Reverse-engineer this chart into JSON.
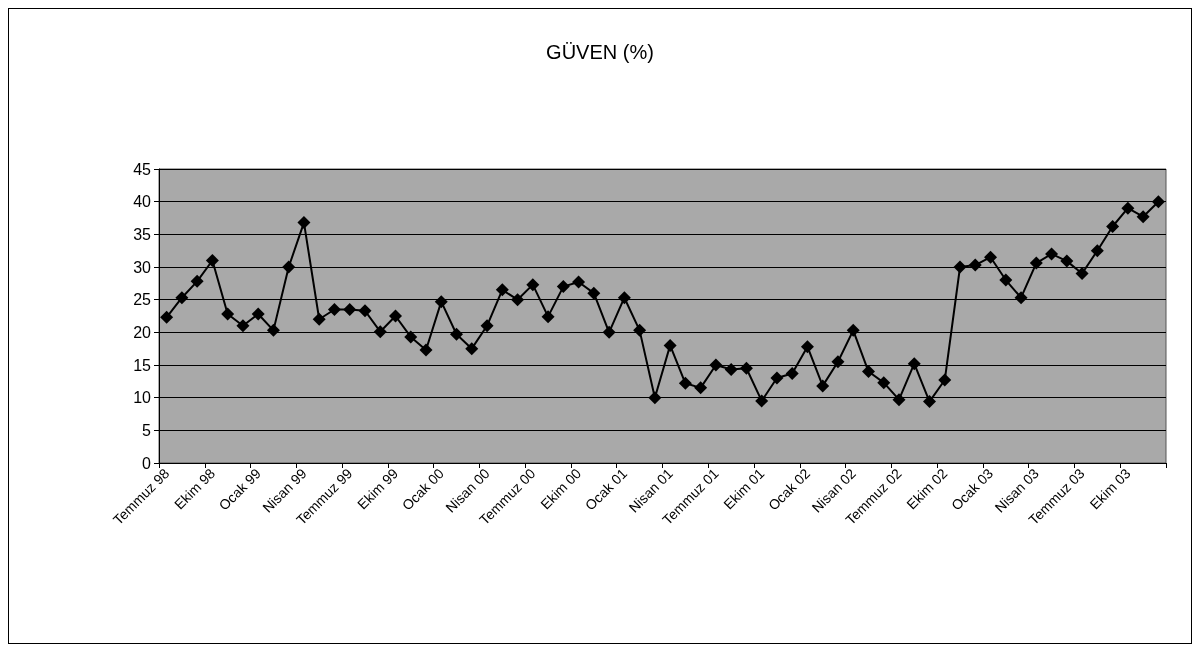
{
  "chart_data": {
    "type": "line",
    "title": "GÜVEN (%)",
    "categories": [
      "Temmuz 98",
      null,
      null,
      "Ekim 98",
      null,
      null,
      "Ocak 99",
      null,
      null,
      "Nisan 99",
      null,
      null,
      "Temmuz 99",
      null,
      null,
      "Ekim 99",
      null,
      null,
      "Ocak 00",
      null,
      null,
      "Nisan 00",
      null,
      null,
      "Temmuz 00",
      null,
      null,
      "Ekim 00",
      null,
      null,
      "Ocak 01",
      null,
      null,
      "Nisan 01",
      null,
      null,
      "Temmuz 01",
      null,
      null,
      "Ekim 01",
      null,
      null,
      "Ocak 02",
      null,
      null,
      "Nisan 02",
      null,
      null,
      "Temmuz 02",
      null,
      null,
      "Ekim 02",
      null,
      null,
      "Ocak 03",
      null,
      null,
      "Nisan 03",
      null,
      null,
      "Temmuz 03",
      null,
      null,
      "Ekim 03",
      null,
      null
    ],
    "series": [
      {
        "color": "#000000",
        "values": [
          22.3,
          25.3,
          27.8,
          31,
          22.8,
          21,
          22.8,
          20.3,
          30,
          36.8,
          22,
          23.5,
          23.5,
          23.3,
          20.1,
          22.5,
          19.3,
          17.3,
          24.7,
          19.7,
          17.5,
          21,
          26.5,
          25,
          27.3,
          22.4,
          27,
          27.7,
          26,
          20,
          25.3,
          20.3,
          10,
          18,
          12.2,
          11.5,
          15,
          14.3,
          14.5,
          9.5,
          13,
          13.7,
          17.8,
          11.8,
          15.5,
          20.3,
          14,
          12.3,
          9.7,
          15.2,
          9.4,
          12.7,
          30,
          30.3,
          31.5,
          28,
          25.3,
          30.6,
          32,
          30.9,
          29,
          32.5,
          36.2,
          39,
          37.7,
          40
        ]
      }
    ],
    "ylim": [
      0,
      45
    ],
    "yticks": [
      0,
      5,
      10,
      15,
      20,
      25,
      30,
      35,
      40,
      45
    ],
    "grid": "y",
    "marker": "diamond",
    "line_style": "solid"
  }
}
